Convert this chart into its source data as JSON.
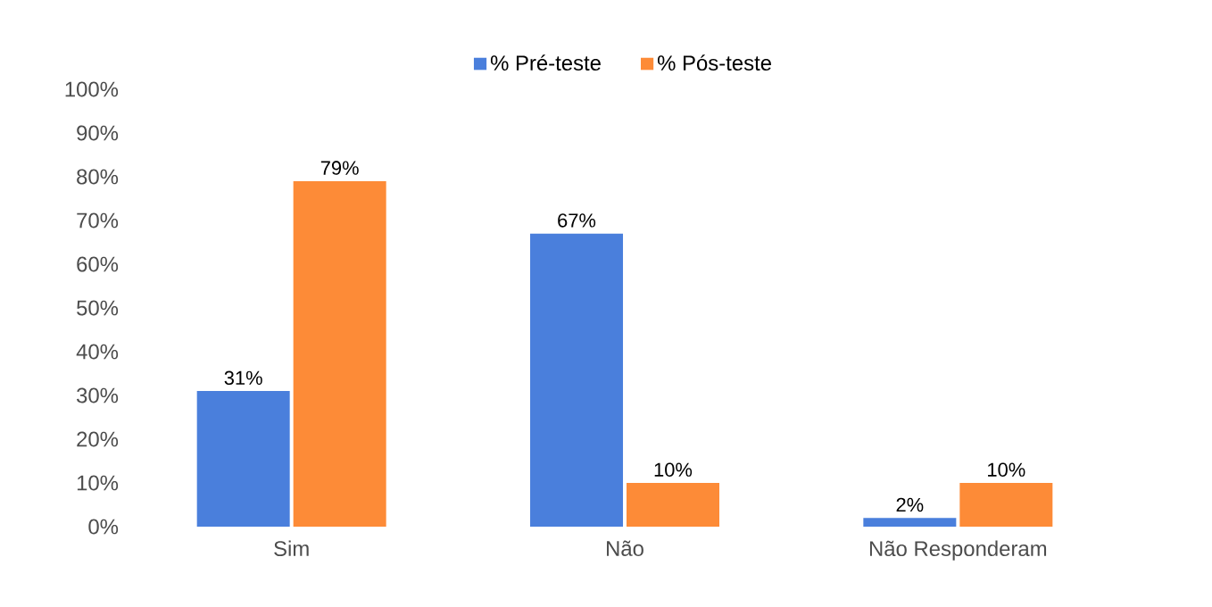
{
  "chart_data": {
    "type": "bar",
    "categories": [
      "Sim",
      "Não",
      "Não Responderam"
    ],
    "series": [
      {
        "name": "% Pré-teste",
        "color": "#4a7fdc",
        "values": [
          31,
          67,
          2
        ],
        "value_labels": [
          "31%",
          "67%",
          "2%"
        ]
      },
      {
        "name": "% Pós-teste",
        "color": "#fd8b37",
        "values": [
          79,
          10,
          10
        ],
        "value_labels": [
          "79%",
          "10%",
          "10%"
        ]
      }
    ],
    "ylim": [
      0,
      100
    ],
    "yticks": [
      {
        "value": 0,
        "label": "0%"
      },
      {
        "value": 10,
        "label": "10%"
      },
      {
        "value": 20,
        "label": "20%"
      },
      {
        "value": 30,
        "label": "30%"
      },
      {
        "value": 40,
        "label": "40%"
      },
      {
        "value": 50,
        "label": "50%"
      },
      {
        "value": 60,
        "label": "60%"
      },
      {
        "value": 70,
        "label": "70%"
      },
      {
        "value": 80,
        "label": "80%"
      },
      {
        "value": 90,
        "label": "90%"
      },
      {
        "value": 100,
        "label": "100%"
      }
    ],
    "legend": "top"
  }
}
